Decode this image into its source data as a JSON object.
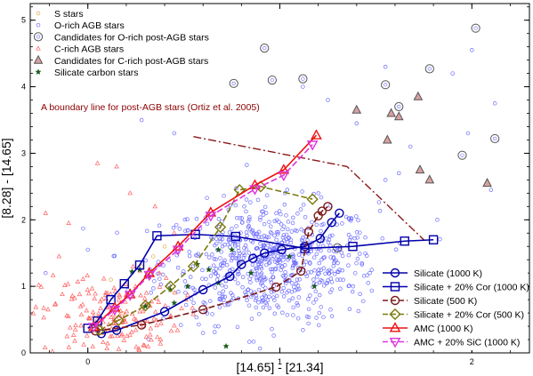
{
  "chart_data": {
    "type": "scatter",
    "xlabel": "[14.65] - [21.34]",
    "ylabel": "[8.28] - [14.65]",
    "xlim": [
      -0.3,
      2.3
    ],
    "ylim": [
      0,
      5.25
    ],
    "x_ticks": [
      0,
      1,
      2
    ],
    "y_ticks": [
      0,
      1,
      2,
      3,
      4,
      5
    ],
    "x_tick_labels": [
      "0",
      "1",
      "2"
    ],
    "y_tick_labels": [
      "0",
      "1",
      "2",
      "3",
      "4",
      "5"
    ],
    "grid": false,
    "legend_top_position": "top-left",
    "legend_bottom_position": "bottom-right",
    "annotation": {
      "text": "A boundary line for post-AGB stars (Ortiz et al. 2005)",
      "color": "#8b0000"
    },
    "boundary_line": {
      "color": "#8b1a1a",
      "x": [
        0.55,
        1.35,
        1.75
      ],
      "y": [
        3.25,
        2.8,
        1.7
      ]
    },
    "point_series": [
      {
        "name": "S stars",
        "marker": "small-open-circle",
        "color": "#e0b050",
        "points": [
          [
            0.12,
            1.1
          ],
          [
            0.34,
            1.45
          ],
          [
            0.22,
            0.85
          ],
          [
            0.4,
            1.6
          ],
          [
            0.28,
            1.3
          ],
          [
            0.18,
            0.6
          ]
        ]
      },
      {
        "name": "O-rich AGB stars",
        "marker": "small-open-circle",
        "color": "#6b6bff",
        "cluster": {
          "center": [
            0.95,
            1.35
          ],
          "spread": [
            0.28,
            0.45
          ],
          "count": 700
        },
        "outliers": [
          [
            0.0,
            1.55
          ],
          [
            -0.22,
            1.2
          ],
          [
            1.4,
            3.45
          ],
          [
            1.55,
            2.6
          ],
          [
            1.68,
            3.1
          ],
          [
            1.82,
            2.0
          ],
          [
            1.98,
            3.3
          ],
          [
            2.1,
            2.45
          ],
          [
            1.25,
            3.8
          ],
          [
            0.6,
            0.3
          ],
          [
            1.12,
            4.0
          ],
          [
            2.0,
            4.55
          ],
          [
            2.12,
            3.75
          ],
          [
            1.9,
            4.2
          ],
          [
            0.28,
            3.5
          ],
          [
            0.45,
            3.3
          ],
          [
            1.55,
            4.3
          ],
          [
            1.62,
            2.7
          ],
          [
            1.3,
            1.1
          ],
          [
            1.46,
            1.05
          ]
        ]
      },
      {
        "name": "Candidates for O-rich post-AGB stars",
        "marker": "large-open-circle",
        "color": "#555555",
        "points": [
          [
            0.92,
            4.58
          ],
          [
            2.02,
            4.88
          ],
          [
            0.76,
            4.05
          ],
          [
            0.96,
            4.1
          ],
          [
            1.12,
            4.12
          ],
          [
            1.55,
            4.03
          ],
          [
            1.78,
            4.27
          ],
          [
            1.62,
            3.7
          ],
          [
            2.12,
            3.22
          ],
          [
            1.95,
            2.97
          ],
          [
            1.3,
            1.58
          ]
        ]
      },
      {
        "name": "C-rich AGB stars",
        "marker": "small-open-triangle",
        "color": "#ff6060",
        "cluster": {
          "center": [
            0.12,
            0.55
          ],
          "spread": [
            0.18,
            0.32
          ],
          "count": 180
        },
        "outliers": [
          [
            -0.22,
            2.1
          ],
          [
            -0.1,
            1.95
          ],
          [
            0.05,
            2.85
          ],
          [
            0.22,
            2.4
          ],
          [
            -0.15,
            1.45
          ],
          [
            0.35,
            2.2
          ],
          [
            0.15,
            2.8
          ],
          [
            0.45,
            1.8
          ]
        ]
      },
      {
        "name": "Candidates for C-rich post-AGB stars",
        "marker": "large-open-triangle",
        "color": "#555555",
        "points": [
          [
            1.4,
            3.65
          ],
          [
            1.56,
            3.2
          ],
          [
            1.62,
            3.55
          ],
          [
            1.72,
            3.85
          ],
          [
            1.73,
            2.75
          ],
          [
            1.78,
            2.6
          ],
          [
            2.08,
            2.55
          ],
          [
            1.58,
            3.6
          ]
        ]
      },
      {
        "name": "Silicate carbon stars",
        "marker": "star",
        "color": "#1a5c1a",
        "points": [
          [
            0.23,
            1.22
          ],
          [
            0.32,
            1.15
          ],
          [
            0.27,
            1.25
          ],
          [
            0.43,
            0.95
          ],
          [
            0.57,
            1.33
          ],
          [
            0.68,
            1.55
          ],
          [
            0.75,
            1.55
          ],
          [
            0.63,
            1.25
          ],
          [
            1.05,
            1.45
          ],
          [
            1.18,
            1.0
          ],
          [
            0.45,
            0.75
          ],
          [
            0.3,
            0.7
          ],
          [
            0.68,
            1.05
          ],
          [
            0.72,
            0.1
          ],
          [
            0.85,
            1.2
          ],
          [
            0.52,
            1.0
          ]
        ]
      }
    ],
    "model_series": [
      {
        "name": "Silicate (1000 K)",
        "color": "#0000aa",
        "marker": "circle",
        "dash": "solid",
        "x": [
          0.07,
          0.15,
          0.4,
          0.6,
          0.74,
          0.8,
          0.86,
          0.92,
          1.01,
          1.13,
          1.21,
          1.27,
          1.31
        ],
        "y": [
          0.29,
          0.34,
          0.62,
          0.95,
          1.15,
          1.33,
          1.42,
          1.5,
          1.55,
          1.6,
          1.72,
          1.96,
          2.1
        ]
      },
      {
        "name": "Silicate + 20% Cor (1000 K)",
        "color": "#0000aa",
        "marker": "square",
        "dash": "solid",
        "x": [
          0.0,
          0.05,
          0.12,
          0.19,
          0.27,
          0.36,
          0.56,
          0.77,
          1.13,
          1.38,
          1.65,
          1.8
        ],
        "y": [
          0.37,
          0.48,
          0.8,
          1.04,
          1.32,
          1.76,
          1.78,
          1.75,
          1.57,
          1.6,
          1.68,
          1.7
        ]
      },
      {
        "name": "Silicate (500 K)",
        "color": "#7a1a1a",
        "marker": "circle",
        "dash": "dashed",
        "x": [
          0.04,
          0.28,
          0.6,
          0.98,
          1.11,
          1.15,
          1.2,
          1.22,
          1.25
        ],
        "y": [
          0.33,
          0.42,
          0.65,
          0.99,
          1.23,
          1.82,
          2.06,
          2.13,
          2.2
        ]
      },
      {
        "name": "Silicate + 20% Cor (500 K)",
        "color": "#7a7a10",
        "marker": "diamond",
        "dash": "dashed",
        "x": [
          0.06,
          0.16,
          0.3,
          0.43,
          0.55,
          0.69,
          0.79,
          0.9,
          1.17
        ],
        "y": [
          0.34,
          0.49,
          0.71,
          1.0,
          1.3,
          1.89,
          2.45,
          2.5,
          2.31
        ]
      },
      {
        "name": "AMC (1000 K)",
        "color": "#ee1111",
        "marker": "triangle",
        "dash": "solid",
        "x": [
          0.03,
          0.14,
          0.22,
          0.32,
          0.47,
          0.64,
          0.87,
          1.02,
          1.19
        ],
        "y": [
          0.39,
          0.68,
          0.88,
          1.2,
          1.6,
          2.11,
          2.52,
          2.75,
          3.27
        ]
      },
      {
        "name": "AMC + 20% SiC (1000 K)",
        "color": "#dd33dd",
        "marker": "inverted-triangle",
        "dash": "dashed",
        "x": [
          0.03,
          0.14,
          0.22,
          0.32,
          0.47,
          0.64,
          0.87,
          1.02,
          1.17
        ],
        "y": [
          0.39,
          0.65,
          0.87,
          1.17,
          1.55,
          2.06,
          2.46,
          2.67,
          3.13
        ]
      }
    ]
  }
}
